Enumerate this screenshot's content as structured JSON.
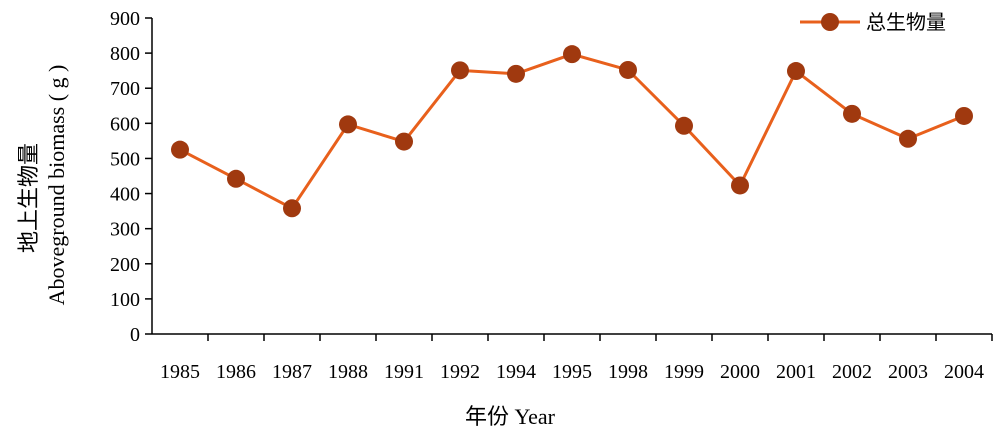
{
  "chart_data": {
    "type": "line",
    "title": "",
    "xlabel": "年份 Year",
    "ylabel_line1": "地上生物量",
    "ylabel_line2": "Aboveground  biomass ( g )",
    "categories": [
      "1985",
      "1986",
      "1987",
      "1988",
      "1991",
      "1992",
      "1994",
      "1995",
      "1998",
      "1999",
      "2000",
      "2001",
      "2002",
      "2003",
      "2004"
    ],
    "series": [
      {
        "name": "总生物量",
        "color": "#e8601c",
        "marker_color": "#a0390f",
        "values": [
          525,
          442,
          358,
          597,
          548,
          751,
          741,
          797,
          752,
          593,
          423,
          749,
          627,
          556,
          621
        ]
      }
    ],
    "ylim": [
      0,
      900
    ],
    "yticks": [
      0,
      100,
      200,
      300,
      400,
      500,
      600,
      700,
      800,
      900
    ],
    "grid": false,
    "legend_position": "top-right"
  }
}
